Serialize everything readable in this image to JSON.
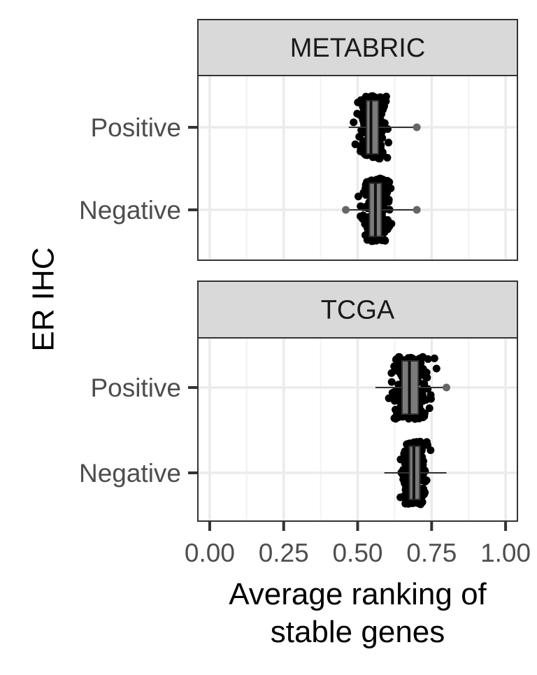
{
  "chart_data": {
    "type": "boxplot_jitter",
    "orientation": "horizontal",
    "xlabel": "Average ranking of\nstable genes",
    "ylabel": "ER IHC",
    "xlim": [
      -0.04,
      1.04
    ],
    "x_ticks": [
      0.0,
      0.25,
      0.5,
      0.75,
      1.0
    ],
    "x_tick_labels": [
      "0.00",
      "0.25",
      "0.50",
      "0.75",
      "1.00"
    ],
    "categories": [
      "Positive",
      "Negative"
    ],
    "grid": true,
    "facets": [
      {
        "title": "METABRIC",
        "groups": [
          {
            "category": "Positive",
            "min": 0.47,
            "q1": 0.53,
            "median": 0.545,
            "q3": 0.57,
            "max": 0.7,
            "outliers": [
              0.7
            ]
          },
          {
            "category": "Negative",
            "min": 0.46,
            "q1": 0.54,
            "median": 0.56,
            "q3": 0.58,
            "max": 0.7,
            "outliers": [
              0.46,
              0.7
            ]
          }
        ]
      },
      {
        "title": "TCGA",
        "groups": [
          {
            "category": "Positive",
            "min": 0.56,
            "q1": 0.65,
            "median": 0.675,
            "q3": 0.705,
            "max": 0.8,
            "outliers": [
              0.8
            ]
          },
          {
            "category": "Negative",
            "min": 0.59,
            "q1": 0.675,
            "median": 0.69,
            "q3": 0.71,
            "max": 0.8,
            "outliers": []
          }
        ]
      }
    ]
  }
}
